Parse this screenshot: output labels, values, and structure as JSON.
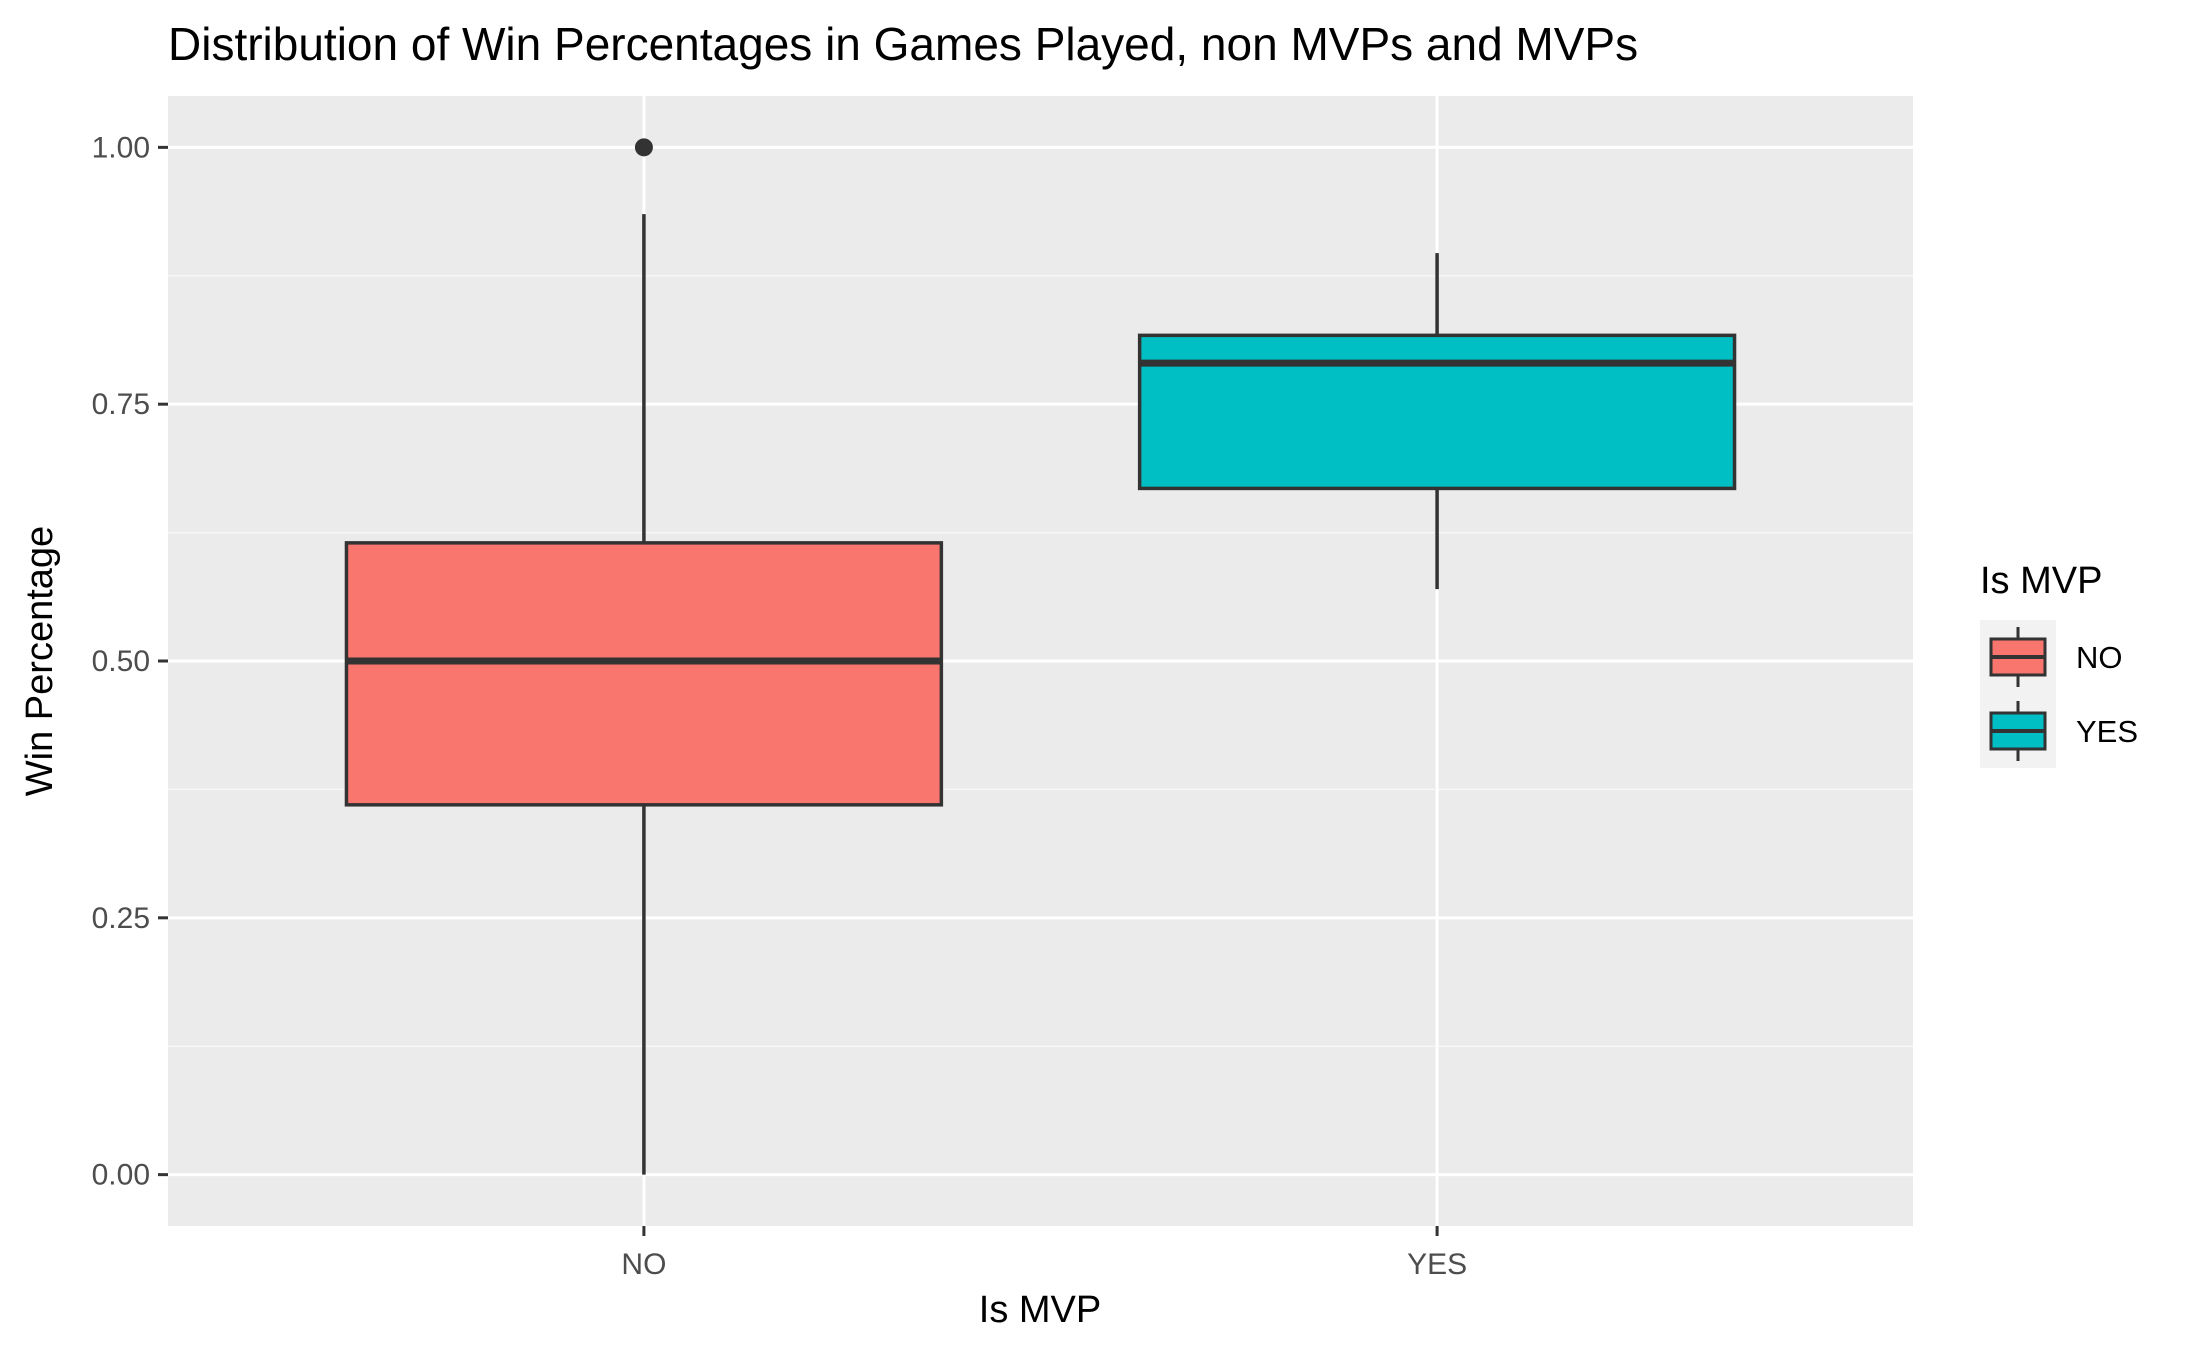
{
  "chart_data": {
    "type": "boxplot",
    "title": "Distribution of Win Percentages in Games Played, non MVPs and MVPs",
    "xlabel": "Is MVP",
    "ylabel": "Win Percentage",
    "categories": [
      "NO",
      "YES"
    ],
    "ylim": [
      -0.05,
      1.05
    ],
    "yticks": [
      0.0,
      0.25,
      0.5,
      0.75,
      1.0
    ],
    "ytick_labels": [
      "0.00",
      "0.25",
      "0.50",
      "0.75",
      "1.00"
    ],
    "grid": true,
    "series": [
      {
        "category": "NO",
        "whisker_low": 0.0,
        "q1": 0.36,
        "median": 0.5,
        "q3": 0.615,
        "whisker_high": 0.935,
        "outliers": [
          1.0
        ],
        "color": "#f8766d"
      },
      {
        "category": "YES",
        "whisker_low": 0.57,
        "q1": 0.668,
        "median": 0.79,
        "q3": 0.817,
        "whisker_high": 0.897,
        "outliers": [],
        "color": "#00bfc4"
      }
    ],
    "legend": {
      "title": "Is MVP",
      "position": "right",
      "entries": [
        "NO",
        "YES"
      ]
    }
  }
}
